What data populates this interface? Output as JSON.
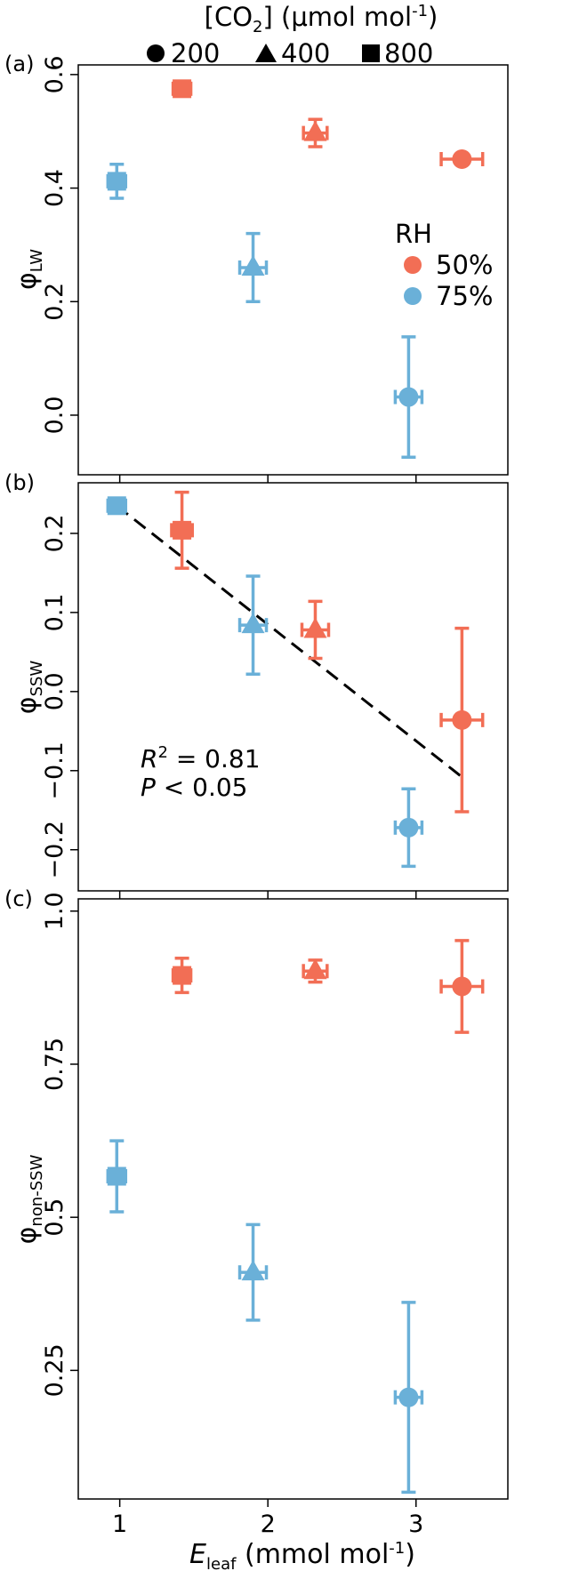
{
  "legend_shape": {
    "title_prefix": "[CO",
    "title_sub": "2",
    "title_suffix": "] (μmol mol",
    "title_sup": "-1",
    "title_end": ")",
    "items": [
      {
        "shape": "circle",
        "label": "200"
      },
      {
        "shape": "triangle",
        "label": "400"
      },
      {
        "shape": "square",
        "label": "800"
      }
    ]
  },
  "legend_color": {
    "title": "RH",
    "items": [
      {
        "label": "50%",
        "color": "#f26e55"
      },
      {
        "label": "75%",
        "color": "#6ab0d8"
      }
    ]
  },
  "x_axis": {
    "label_main": "E",
    "label_sub": "leaf",
    "label_rest": " (mmol mol",
    "label_sup": "-1",
    "label_end": ")",
    "ticks": [
      "1",
      "2",
      "3"
    ]
  },
  "annotation": {
    "r_letter": "R",
    "r_sup": "2",
    "r_rest": " = 0.81",
    "p_letter": "P",
    "p_rest": " < 0.05"
  },
  "chart_data": [
    {
      "type": "scatter",
      "panel": "(a)",
      "ylabel_main": "φ",
      "ylabel_sub": "LW",
      "xlim": [
        0.72,
        3.62
      ],
      "ylim": [
        -0.105,
        0.617
      ],
      "yticks": [
        0.0,
        0.2,
        0.4,
        0.6
      ],
      "ytick_labels": [
        "0.0",
        "0.2",
        "0.4",
        "0.6"
      ],
      "points": [
        {
          "rh": "50%",
          "co2": "800",
          "x": 1.42,
          "y": 0.575,
          "xerr": 0.06,
          "yerr": 0.006
        },
        {
          "rh": "50%",
          "co2": "400",
          "x": 2.32,
          "y": 0.497,
          "xerr": 0.08,
          "yerr": 0.024
        },
        {
          "rh": "50%",
          "co2": "200",
          "x": 3.31,
          "y": 0.451,
          "xerr": 0.14,
          "yerr": 0.006
        },
        {
          "rh": "75%",
          "co2": "800",
          "x": 0.98,
          "y": 0.412,
          "xerr": 0.06,
          "yerr": 0.03
        },
        {
          "rh": "75%",
          "co2": "400",
          "x": 1.9,
          "y": 0.26,
          "xerr": 0.09,
          "yerr": 0.06
        },
        {
          "rh": "75%",
          "co2": "200",
          "x": 2.95,
          "y": 0.032,
          "xerr": 0.09,
          "yerr": 0.106
        }
      ]
    },
    {
      "type": "scatter",
      "panel": "(b)",
      "ylabel_main": "φ",
      "ylabel_sub": "SSW",
      "xlim": [
        0.72,
        3.62
      ],
      "ylim": [
        -0.252,
        0.264
      ],
      "yticks": [
        -0.2,
        -0.1,
        0.0,
        0.1,
        0.2
      ],
      "ytick_labels": [
        "−0.2",
        "−0.1",
        "0.0",
        "0.1",
        "0.2"
      ],
      "points": [
        {
          "rh": "75%",
          "co2": "800",
          "x": 0.98,
          "y": 0.235,
          "xerr": 0.06,
          "yerr": 0.007
        },
        {
          "rh": "50%",
          "co2": "800",
          "x": 1.42,
          "y": 0.204,
          "xerr": 0.07,
          "yerr": 0.048
        },
        {
          "rh": "75%",
          "co2": "400",
          "x": 1.9,
          "y": 0.084,
          "xerr": 0.09,
          "yerr": 0.062
        },
        {
          "rh": "50%",
          "co2": "400",
          "x": 2.32,
          "y": 0.078,
          "xerr": 0.09,
          "yerr": 0.036
        },
        {
          "rh": "50%",
          "co2": "200",
          "x": 3.31,
          "y": -0.036,
          "xerr": 0.14,
          "yerr": 0.116
        },
        {
          "rh": "75%",
          "co2": "200",
          "x": 2.95,
          "y": -0.172,
          "xerr": 0.09,
          "yerr": 0.049
        }
      ],
      "fit_line": {
        "x": [
          0.98,
          3.31
        ],
        "y": [
          0.235,
          -0.108
        ]
      }
    },
    {
      "type": "scatter",
      "panel": "(c)",
      "ylabel_main": "φ",
      "ylabel_sub": "non-SSW",
      "xlim": [
        0.72,
        3.62
      ],
      "ylim": [
        0.04,
        1.02
      ],
      "yticks": [
        0.25,
        0.5,
        0.75,
        1.0
      ],
      "ytick_labels": [
        "0.25",
        "0.5",
        "0.75",
        "1.0"
      ],
      "points": [
        {
          "rh": "50%",
          "co2": "800",
          "x": 1.42,
          "y": 0.895,
          "xerr": 0.06,
          "yerr": 0.028
        },
        {
          "rh": "50%",
          "co2": "400",
          "x": 2.32,
          "y": 0.902,
          "xerr": 0.08,
          "yerr": 0.018
        },
        {
          "rh": "50%",
          "co2": "200",
          "x": 3.31,
          "y": 0.877,
          "xerr": 0.14,
          "yerr": 0.075
        },
        {
          "rh": "75%",
          "co2": "800",
          "x": 0.98,
          "y": 0.567,
          "xerr": 0.06,
          "yerr": 0.058
        },
        {
          "rh": "75%",
          "co2": "400",
          "x": 1.9,
          "y": 0.41,
          "xerr": 0.09,
          "yerr": 0.078
        },
        {
          "rh": "75%",
          "co2": "200",
          "x": 2.95,
          "y": 0.206,
          "xerr": 0.09,
          "yerr": 0.155
        }
      ]
    }
  ]
}
